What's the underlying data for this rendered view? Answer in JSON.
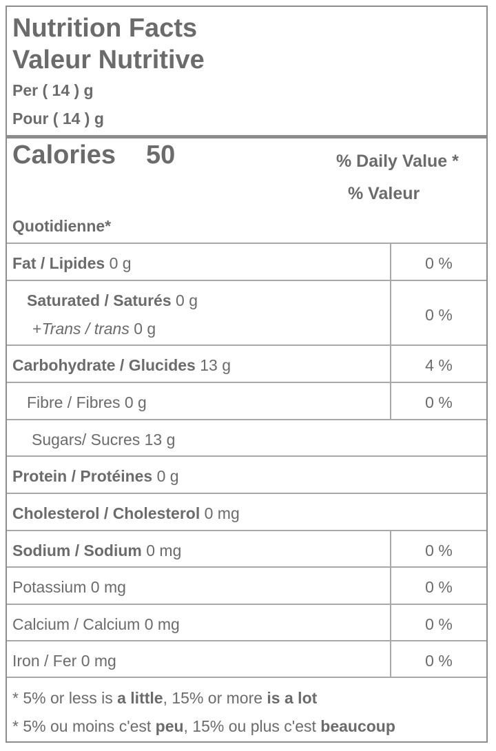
{
  "header": {
    "title_en": "Nutrition Facts",
    "title_fr": "Valeur Nutritive",
    "per_en": "Per ( 14 ) g",
    "per_fr": "Pour ( 14 ) g"
  },
  "calories": {
    "label": "Calories",
    "value": "50",
    "dv_en": "% Daily Value *",
    "dv_fr_1": "% Valeur",
    "dv_fr_2": "Quotidienne*"
  },
  "nutrients": {
    "fat": {
      "label": "Fat / Lipides",
      "amount": " 0 g",
      "dv": "0 %"
    },
    "saturated": {
      "label": "Saturated / Saturés",
      "amount": " 0 g",
      "dv": "0 %"
    },
    "trans": {
      "prefix": "+",
      "label": "Trans / trans",
      "amount": " 0 g"
    },
    "carbohydrate": {
      "label": "Carbohydrate / Glucides",
      "amount": " 13 g",
      "dv": "4 %"
    },
    "fibre": {
      "label": "Fibre / Fibres 0 g",
      "dv": "0 %"
    },
    "sugars": {
      "label": "Sugars/ Sucres 13 g"
    },
    "protein": {
      "label": "Protein / Protéines",
      "amount": " 0 g"
    },
    "cholesterol": {
      "label": "Cholesterol / Cholesterol",
      "amount": " 0 mg"
    },
    "sodium": {
      "label": "Sodium / Sodium",
      "amount": " 0 mg",
      "dv": "0 %"
    },
    "potassium": {
      "label": "Potassium 0 mg",
      "dv": "0 %"
    },
    "calcium": {
      "label": "Calcium / Calcium 0 mg",
      "dv": "0 %"
    },
    "iron": {
      "label": "Iron / Fer 0 mg",
      "dv": "0 %"
    }
  },
  "footnote": {
    "en_1": "* 5% or less is ",
    "en_2": "a little",
    "en_3": ", 15% or more ",
    "en_4": "is a lot",
    "fr_1": "* 5% ou moins c'est ",
    "fr_2": "peu",
    "fr_3": ", 15% ou plus c'est ",
    "fr_4": "beaucoup"
  },
  "colors": {
    "text": "#6b6b6b",
    "rule": "#8c8c8c"
  }
}
